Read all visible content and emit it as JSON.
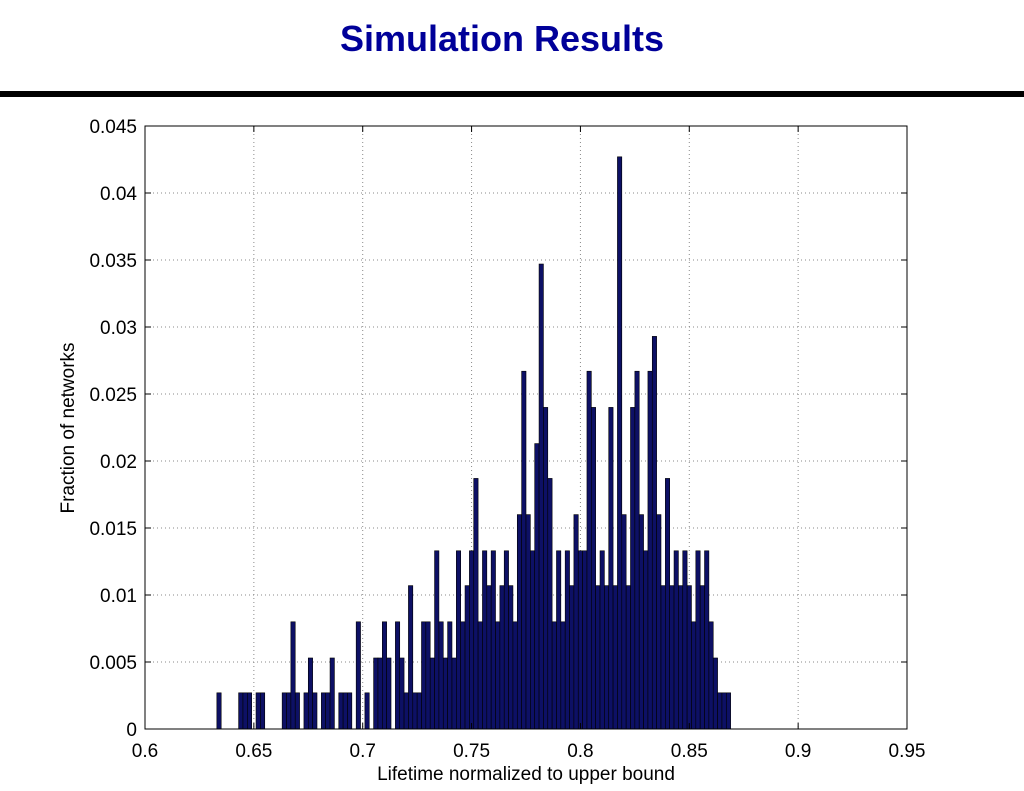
{
  "slide": {
    "title": "Simulation Results"
  },
  "colors": {
    "title": "#000099",
    "bars": "#0d1065",
    "bar_edge": "#000000",
    "rule": "#000000"
  },
  "chart_data": {
    "type": "bar",
    "title": "",
    "xlabel": "Lifetime normalized to upper bound",
    "ylabel": "Fraction of networks",
    "xlim": [
      0.6,
      0.95
    ],
    "ylim": [
      0,
      0.045
    ],
    "xticks": [
      0.6,
      0.65,
      0.7,
      0.75,
      0.8,
      0.85,
      0.9,
      0.95
    ],
    "xtick_labels": [
      "0.6",
      "0.65",
      "0.7",
      "0.75",
      "0.8",
      "0.85",
      "0.9",
      "0.95"
    ],
    "yticks": [
      0,
      0.005,
      0.01,
      0.015,
      0.02,
      0.025,
      0.03,
      0.035,
      0.04,
      0.045
    ],
    "ytick_labels": [
      "0",
      "0.005",
      "0.01",
      "0.015",
      "0.02",
      "0.025",
      "0.03",
      "0.035",
      "0.04",
      "0.045"
    ],
    "grid": true,
    "bin_width": 0.002,
    "x": [
      0.634,
      0.644,
      0.646,
      0.648,
      0.652,
      0.654,
      0.664,
      0.666,
      0.668,
      0.67,
      0.674,
      0.676,
      0.678,
      0.682,
      0.684,
      0.686,
      0.69,
      0.692,
      0.694,
      0.698,
      0.702,
      0.706,
      0.708,
      0.71,
      0.712,
      0.716,
      0.718,
      0.72,
      0.722,
      0.724,
      0.726,
      0.728,
      0.73,
      0.732,
      0.734,
      0.736,
      0.738,
      0.74,
      0.742,
      0.744,
      0.746,
      0.748,
      0.75,
      0.752,
      0.754,
      0.756,
      0.758,
      0.76,
      0.762,
      0.764,
      0.766,
      0.768,
      0.77,
      0.772,
      0.774,
      0.776,
      0.778,
      0.78,
      0.782,
      0.784,
      0.786,
      0.788,
      0.79,
      0.792,
      0.794,
      0.796,
      0.798,
      0.8,
      0.802,
      0.804,
      0.806,
      0.808,
      0.81,
      0.812,
      0.814,
      0.816,
      0.818,
      0.82,
      0.822,
      0.824,
      0.826,
      0.828,
      0.83,
      0.832,
      0.834,
      0.836,
      0.838,
      0.84,
      0.842,
      0.844,
      0.846,
      0.848,
      0.85,
      0.852,
      0.854,
      0.856,
      0.858,
      0.86,
      0.862,
      0.864,
      0.866,
      0.868
    ],
    "values": [
      0.0027,
      0.0027,
      0.0027,
      0.0027,
      0.0027,
      0.0027,
      0.0027,
      0.0027,
      0.008,
      0.0027,
      0.0027,
      0.0053,
      0.0027,
      0.0027,
      0.0027,
      0.0053,
      0.0027,
      0.0027,
      0.0027,
      0.008,
      0.0027,
      0.0053,
      0.0053,
      0.008,
      0.0053,
      0.008,
      0.0053,
      0.0027,
      0.0107,
      0.0027,
      0.0027,
      0.008,
      0.008,
      0.0053,
      0.0133,
      0.008,
      0.0053,
      0.008,
      0.0053,
      0.0133,
      0.008,
      0.0107,
      0.0133,
      0.0187,
      0.008,
      0.0133,
      0.0107,
      0.0133,
      0.008,
      0.0107,
      0.0133,
      0.0107,
      0.008,
      0.016,
      0.0267,
      0.016,
      0.0133,
      0.0213,
      0.0347,
      0.024,
      0.0187,
      0.008,
      0.0133,
      0.008,
      0.0133,
      0.0107,
      0.016,
      0.0133,
      0.0133,
      0.0267,
      0.024,
      0.0107,
      0.0133,
      0.0107,
      0.024,
      0.0107,
      0.0427,
      0.016,
      0.0107,
      0.024,
      0.0267,
      0.016,
      0.0133,
      0.0267,
      0.0293,
      0.016,
      0.0107,
      0.0187,
      0.0107,
      0.0133,
      0.0107,
      0.0133,
      0.0107,
      0.008,
      0.0133,
      0.0107,
      0.0133,
      0.008,
      0.0053,
      0.0027,
      0.0027,
      0.0027
    ]
  }
}
